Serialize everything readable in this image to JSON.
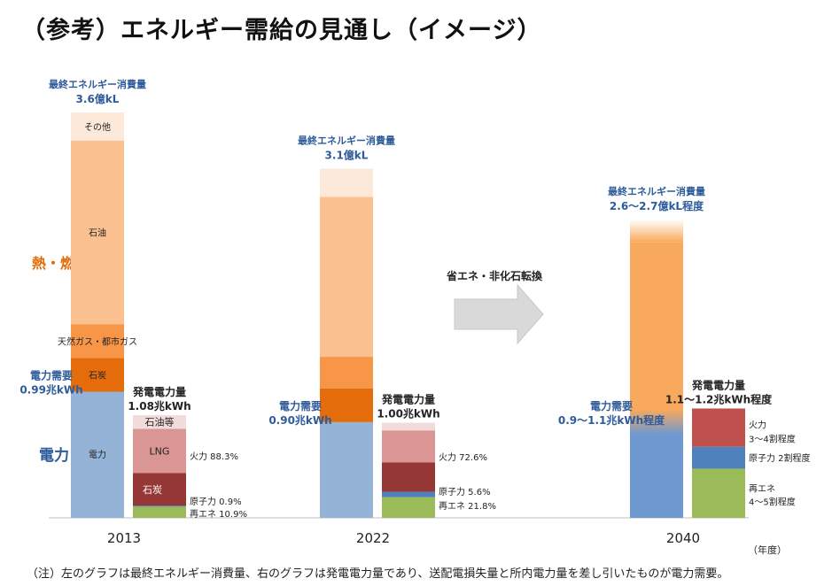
{
  "title": "（参考）エネルギー需給の見通し（イメージ）",
  "note": "（注）左のグラフは最終エネルギー消費量、右のグラフは発電電力量であり、送配電損失量と所内電力量を差し引いたものが電力需要。",
  "colors": {
    "blue_label": "#2e5b9a",
    "orange_label": "#e36c0a",
    "arrow": "#d9d9d9"
  },
  "chart_data": {
    "type": "bar",
    "title": "（参考）エネルギー需給の見通し（イメージ）",
    "x_unit": "（年度）",
    "categories": [
      "2013",
      "2022",
      "2040"
    ],
    "category_labels": {
      "heat_fuel": "熱・燃料",
      "electricity": "電力"
    },
    "arrow_label": "省エネ・非化石転換",
    "final_energy": [
      {
        "year": "2013",
        "total_label": "最終エネルギー消費量",
        "total_value": "3.6億kL",
        "total": 3.6,
        "electricity_demand_label": "電力需要",
        "electricity_demand_value": "0.99兆kWh",
        "segments": [
          {
            "name": "電力",
            "label": "電力",
            "value": 1.12,
            "color": "#95b3d7"
          },
          {
            "name": "石炭",
            "label": "石炭",
            "value": 0.3,
            "color": "#e46c0a"
          },
          {
            "name": "天然ガス・都市ガス",
            "label": "天然ガス・都市ガス",
            "value": 0.3,
            "color": "#f79646"
          },
          {
            "name": "石油",
            "label": "石油",
            "value": 1.63,
            "color": "#fac090"
          },
          {
            "name": "その他",
            "label": "その他",
            "value": 0.25,
            "color": "#fde9d9"
          }
        ]
      },
      {
        "year": "2022",
        "total_label": "最終エネルギー消費量",
        "total_value": "3.1億kL",
        "total": 3.1,
        "electricity_demand_label": "電力需要",
        "electricity_demand_value": "0.90兆kWh",
        "segments": [
          {
            "name": "電力",
            "label": "",
            "value": 0.85,
            "color": "#95b3d7"
          },
          {
            "name": "石炭",
            "label": "",
            "value": 0.3,
            "color": "#e46c0a"
          },
          {
            "name": "天然ガス・都市ガス",
            "label": "",
            "value": 0.28,
            "color": "#f79646"
          },
          {
            "name": "石油",
            "label": "",
            "value": 1.42,
            "color": "#fac090"
          },
          {
            "name": "その他",
            "label": "",
            "value": 0.25,
            "color": "#fde9d9"
          }
        ]
      },
      {
        "year": "2040",
        "total_label": "最終エネルギー消費量",
        "total_value": "2.6～2.7億kL程度",
        "total": 2.65,
        "electricity_demand_label": "電力需要",
        "electricity_demand_value": "0.9～1.1兆kWh程度",
        "segments": [
          {
            "name": "電力",
            "label": "",
            "value": 0.85,
            "color": "#6e99d0"
          },
          {
            "name": "熱・燃料",
            "label": "",
            "value": 1.6,
            "color": "#f8a95d"
          },
          {
            "name": "その他",
            "label": "",
            "value": 0.2,
            "color": "#fde9d9"
          }
        ]
      }
    ],
    "generation": [
      {
        "year": "2013",
        "total_label": "発電電力量",
        "total_value": "1.08兆kWh",
        "total": 1.08,
        "segments": [
          {
            "name": "再エネ",
            "label": "",
            "value": 10.9,
            "color": "#9bbb59"
          },
          {
            "name": "原子力",
            "label": "",
            "value": 0.9,
            "color": "#4f81bd"
          },
          {
            "name": "石炭",
            "label": "石炭",
            "value": 32.0,
            "color": "#953735"
          },
          {
            "name": "LNG",
            "label": "LNG",
            "value": 43.0,
            "color": "#da9694"
          },
          {
            "name": "石油等",
            "label": "石油等",
            "value": 13.3,
            "color": "#f2dcdb"
          }
        ],
        "side_labels": [
          {
            "text": "火力 88.3%",
            "anchor": "fire"
          },
          {
            "text": "原子力 0.9%",
            "anchor": "nuclear"
          },
          {
            "text": "再エネ 10.9%",
            "anchor": "renew"
          }
        ]
      },
      {
        "year": "2022",
        "total_label": "発電電力量",
        "total_value": "1.00兆kWh",
        "total": 1.0,
        "segments": [
          {
            "name": "再エネ",
            "label": "",
            "value": 21.8,
            "color": "#9bbb59"
          },
          {
            "name": "原子力",
            "label": "",
            "value": 5.6,
            "color": "#4f81bd"
          },
          {
            "name": "石炭",
            "label": "",
            "value": 31.0,
            "color": "#953735"
          },
          {
            "name": "LNG",
            "label": "",
            "value": 33.6,
            "color": "#da9694"
          },
          {
            "name": "石油等",
            "label": "",
            "value": 8.0,
            "color": "#f2dcdb"
          }
        ],
        "side_labels": [
          {
            "text": "火力 72.6%",
            "anchor": "fire"
          },
          {
            "text": "原子力 5.6%",
            "anchor": "nuclear"
          },
          {
            "text": "再エネ 21.8%",
            "anchor": "renew"
          }
        ]
      },
      {
        "year": "2040",
        "total_label": "発電電力量",
        "total_value": "1.1～1.2兆kWh程度",
        "total": 1.15,
        "segments": [
          {
            "name": "再エネ",
            "label": "",
            "value": 45,
            "color": "#9bbb59"
          },
          {
            "name": "原子力",
            "label": "",
            "value": 20,
            "color": "#4f81bd"
          },
          {
            "name": "火力",
            "label": "",
            "value": 35,
            "color": "#c0504d"
          }
        ],
        "side_labels": [
          {
            "text": "火力",
            "anchor": "fire"
          },
          {
            "text": "3～4割程度",
            "anchor": "fire2"
          },
          {
            "text": "原子力 2割程度",
            "anchor": "nuclear"
          },
          {
            "text": "再エネ",
            "anchor": "renew"
          },
          {
            "text": "4～5割程度",
            "anchor": "renew2"
          }
        ]
      }
    ]
  }
}
